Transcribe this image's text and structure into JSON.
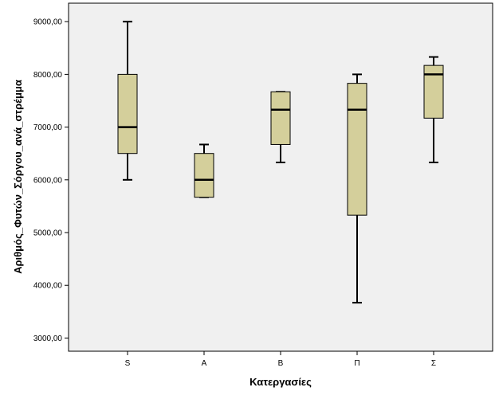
{
  "chart_data": {
    "type": "boxplot",
    "title": "",
    "xlabel": "Κατεργασίες",
    "ylabel": "Αριθμός_Φυτών_Σόργου_ανά_στρέμμα",
    "ylim": [
      2750,
      9350
    ],
    "yticks": [
      {
        "value": 3000,
        "label": "3000,00"
      },
      {
        "value": 4000,
        "label": "4000,00"
      },
      {
        "value": 5000,
        "label": "5000,00"
      },
      {
        "value": 6000,
        "label": "6000,00"
      },
      {
        "value": 7000,
        "label": "7000,00"
      },
      {
        "value": 8000,
        "label": "8000,00"
      },
      {
        "value": 9000,
        "label": "9000,00"
      }
    ],
    "categories": [
      "S",
      "A",
      "B",
      "Π",
      "Σ"
    ],
    "boxes": [
      {
        "category": "S",
        "min": 6000,
        "q1": 6500,
        "median": 7000,
        "q3": 8000,
        "max": 9000
      },
      {
        "category": "A",
        "min": 5670,
        "q1": 5670,
        "median": 6000,
        "q3": 6500,
        "max": 6670
      },
      {
        "category": "B",
        "min": 6330,
        "q1": 6670,
        "median": 7330,
        "q3": 7670,
        "max": 7670
      },
      {
        "category": "Π",
        "min": 3670,
        "q1": 5330,
        "median": 7330,
        "q3": 7830,
        "max": 8000
      },
      {
        "category": "Σ",
        "min": 6330,
        "q1": 7170,
        "median": 8000,
        "q3": 8170,
        "max": 8330
      }
    ],
    "grid": false,
    "colors": {
      "box_fill": "#d4cf9b",
      "plot_background": "#f0f0f0",
      "line": "#000000"
    }
  }
}
